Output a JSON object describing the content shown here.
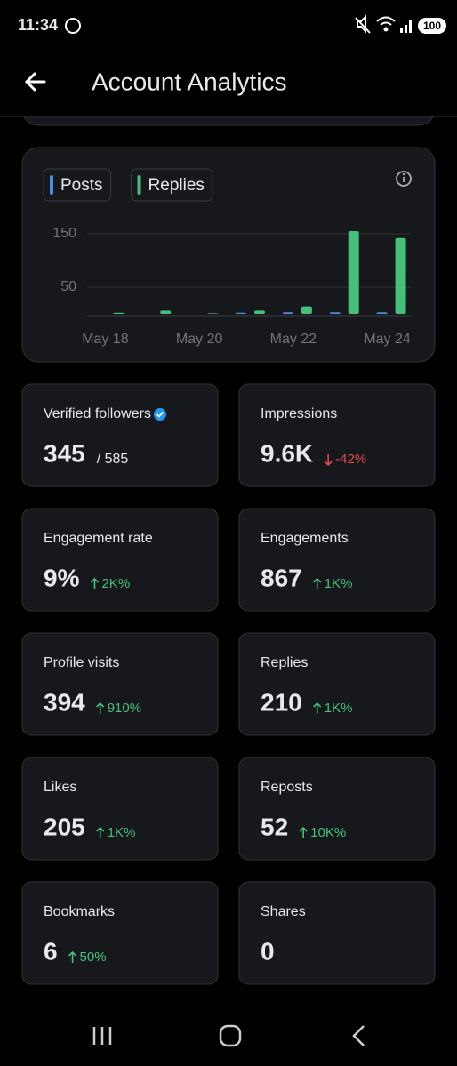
{
  "status_bar": {
    "time": "11:34",
    "battery": "100"
  },
  "header": {
    "title": "Account Analytics"
  },
  "chart_data": {
    "type": "bar",
    "categories": [
      "May 18",
      null,
      "May 20",
      null,
      "May 22",
      null,
      "May 24"
    ],
    "series": [
      {
        "name": "Posts",
        "color": "#4a8fe7",
        "values": [
          0,
          0,
          0,
          2,
          3,
          3,
          3
        ]
      },
      {
        "name": "Replies",
        "color": "#45c07a",
        "values": [
          2,
          6,
          1,
          6,
          14,
          155,
          142
        ]
      }
    ],
    "ylim": [
      0,
      160
    ],
    "yticks": [
      50,
      150
    ],
    "grid": true
  },
  "stats": [
    {
      "label": "Verified followers",
      "value": "345",
      "note": "/ 585",
      "verified": true
    },
    {
      "label": "Impressions",
      "value": "9.6K",
      "change": "-42%",
      "trend": "down"
    },
    {
      "label": "Engagement rate",
      "value": "9%",
      "change": "2K%",
      "trend": "up"
    },
    {
      "label": "Engagements",
      "value": "867",
      "change": "1K%",
      "trend": "up"
    },
    {
      "label": "Profile visits",
      "value": "394",
      "change": "910%",
      "trend": "up"
    },
    {
      "label": "Replies",
      "value": "210",
      "change": "1K%",
      "trend": "up"
    },
    {
      "label": "Likes",
      "value": "205",
      "change": "1K%",
      "trend": "up"
    },
    {
      "label": "Reposts",
      "value": "52",
      "change": "10K%",
      "trend": "up"
    },
    {
      "label": "Bookmarks",
      "value": "6",
      "change": "50%",
      "trend": "up"
    },
    {
      "label": "Shares",
      "value": "0"
    }
  ]
}
